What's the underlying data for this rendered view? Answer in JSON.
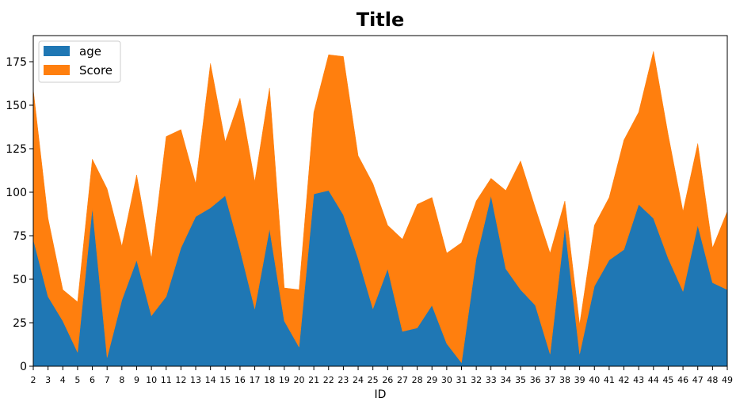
{
  "chart_data": {
    "type": "area",
    "stacked": true,
    "title": "Title",
    "xlabel": "ID",
    "ylabel": "",
    "x": [
      2,
      3,
      4,
      5,
      6,
      7,
      8,
      9,
      10,
      11,
      12,
      13,
      14,
      15,
      16,
      17,
      18,
      19,
      20,
      21,
      22,
      23,
      24,
      25,
      26,
      27,
      28,
      29,
      30,
      31,
      32,
      33,
      34,
      35,
      36,
      37,
      38,
      39,
      40,
      41,
      42,
      43,
      44,
      45,
      46,
      47,
      48,
      49
    ],
    "ylim": [
      0,
      190
    ],
    "yticks": [
      0,
      25,
      50,
      75,
      100,
      125,
      150,
      175
    ],
    "legend_position": "top-left",
    "series": [
      {
        "name": "age",
        "color": "#1f77b4",
        "values": [
          73,
          40,
          26,
          8,
          91,
          5,
          38,
          61,
          29,
          40,
          68,
          86,
          91,
          98,
          67,
          33,
          79,
          26,
          11,
          99,
          101,
          87,
          62,
          33,
          56,
          20,
          22,
          35,
          13,
          2,
          62,
          98,
          56,
          44,
          35,
          7,
          80,
          7,
          46,
          61,
          67,
          93,
          85,
          62,
          43,
          81,
          48,
          44
        ]
      },
      {
        "name": "Score",
        "color": "#ff7f0e",
        "values": [
          86,
          45,
          18,
          29,
          28,
          97,
          31,
          49,
          33,
          92,
          68,
          19,
          83,
          31,
          87,
          73,
          81,
          19,
          33,
          47,
          78,
          91,
          59,
          72,
          25,
          53,
          71,
          62,
          52,
          69,
          33,
          10,
          45,
          74,
          56,
          58,
          15,
          17,
          35,
          36,
          63,
          53,
          96,
          71,
          46,
          47,
          20,
          45
        ]
      }
    ]
  }
}
